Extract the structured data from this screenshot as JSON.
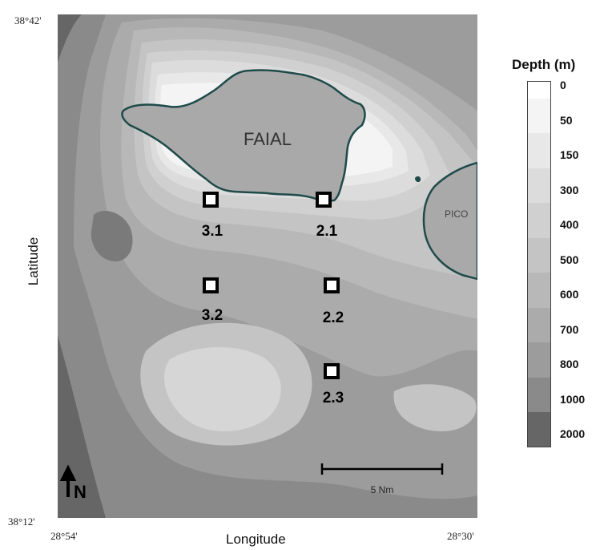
{
  "map": {
    "island_main": "FAIAL",
    "island_secondary": "PICO",
    "stations": [
      {
        "id": "3.1"
      },
      {
        "id": "2.1"
      },
      {
        "id": "3.2"
      },
      {
        "id": "2.2"
      },
      {
        "id": "2.3"
      }
    ],
    "north_arrow": "N",
    "scale_bar": "5 Nm"
  },
  "axes": {
    "xlabel": "Longitude",
    "ylabel": "Latitude",
    "lat_top": "38°42'",
    "lat_bottom": "38°12'",
    "lon_left": "28°54'",
    "lon_right": "28°30'"
  },
  "legend": {
    "title": "Depth (m)",
    "levels": [
      {
        "label": "0",
        "color": "#ffffff"
      },
      {
        "label": "50",
        "color": "#f4f4f4"
      },
      {
        "label": "150",
        "color": "#e8e8e8"
      },
      {
        "label": "300",
        "color": "#dcdcdc"
      },
      {
        "label": "400",
        "color": "#d0d0d0"
      },
      {
        "label": "500",
        "color": "#c4c4c4"
      },
      {
        "label": "600",
        "color": "#b8b8b8"
      },
      {
        "label": "700",
        "color": "#ababab"
      },
      {
        "label": "800",
        "color": "#9c9c9c"
      },
      {
        "label": "1000",
        "color": "#8a8a8a"
      },
      {
        "label": "2000",
        "color": "#666666"
      }
    ]
  },
  "colors": {
    "coastline": "#1f4a4a",
    "land": "#a9a9a9",
    "deep": "#666666"
  }
}
